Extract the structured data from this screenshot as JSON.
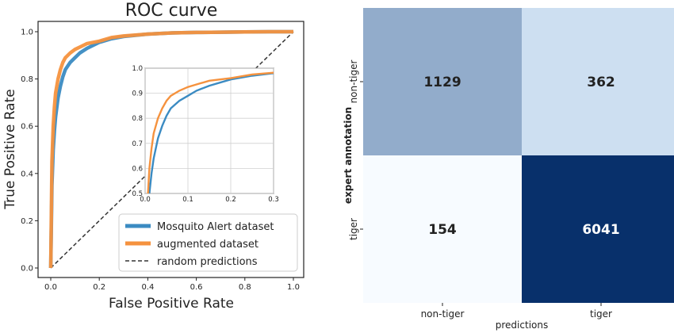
{
  "chart_data": [
    {
      "type": "line",
      "title": "ROC curve",
      "xlabel": "False Positive Rate",
      "ylabel": "True Positive Rate",
      "xlim": [
        0,
        1
      ],
      "ylim": [
        0,
        1
      ],
      "xticks": [
        "0.0",
        "0.2",
        "0.4",
        "0.6",
        "0.8",
        "1.0"
      ],
      "yticks": [
        "0.0",
        "0.2",
        "0.4",
        "0.6",
        "0.8",
        "1.0"
      ],
      "grid": false,
      "legend_position": "bottom-right",
      "series": [
        {
          "name": "Mosquito Alert dataset",
          "color": "#3b8bc2",
          "x": [
            0,
            0.005,
            0.01,
            0.015,
            0.02,
            0.03,
            0.04,
            0.05,
            0.06,
            0.08,
            0.1,
            0.12,
            0.15,
            0.2,
            0.25,
            0.3,
            0.4,
            0.5,
            0.6,
            0.7,
            0.8,
            0.9,
            1.0
          ],
          "y": [
            0,
            0.35,
            0.5,
            0.58,
            0.64,
            0.72,
            0.77,
            0.81,
            0.84,
            0.87,
            0.89,
            0.91,
            0.93,
            0.955,
            0.97,
            0.98,
            0.99,
            0.995,
            0.997,
            0.998,
            0.999,
            1.0,
            1.0
          ]
        },
        {
          "name": "augmented dataset",
          "color": "#f5923e",
          "x": [
            0,
            0.005,
            0.01,
            0.015,
            0.02,
            0.03,
            0.04,
            0.05,
            0.06,
            0.08,
            0.1,
            0.12,
            0.15,
            0.2,
            0.25,
            0.3,
            0.4,
            0.5,
            0.6,
            0.7,
            0.8,
            0.9,
            1.0
          ],
          "y": [
            0,
            0.45,
            0.6,
            0.68,
            0.74,
            0.8,
            0.84,
            0.87,
            0.89,
            0.91,
            0.925,
            0.935,
            0.95,
            0.96,
            0.975,
            0.982,
            0.99,
            0.995,
            0.997,
            0.998,
            0.999,
            1.0,
            1.0
          ]
        },
        {
          "name": "random predictions",
          "color": "#333333",
          "dashed": true,
          "x": [
            0,
            1
          ],
          "y": [
            0,
            1
          ]
        }
      ],
      "inset": {
        "xlim": [
          0,
          0.3
        ],
        "ylim": [
          0.5,
          1.0
        ],
        "xticks": [
          "0.0",
          "0.1",
          "0.2",
          "0.3"
        ],
        "yticks": [
          "0.5",
          "0.6",
          "0.7",
          "0.8",
          "0.9",
          "1.0"
        ],
        "grid": true
      }
    },
    {
      "type": "heatmap",
      "xlabel": "predictions",
      "ylabel": "expert annotation",
      "x_categories": [
        "non-tiger",
        "tiger"
      ],
      "y_categories": [
        "non-tiger",
        "tiger"
      ],
      "values": [
        [
          1129,
          362
        ],
        [
          154,
          6041
        ]
      ],
      "colormap": "Blues",
      "colors": {
        "low": "#f7fbff",
        "high": "#08306b"
      }
    }
  ]
}
